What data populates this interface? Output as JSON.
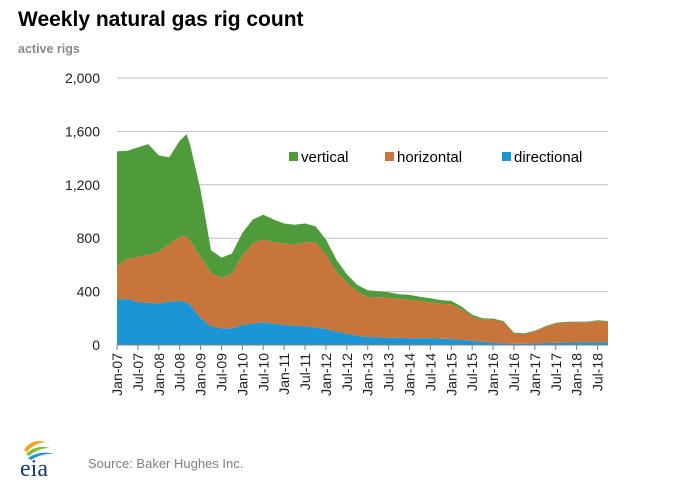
{
  "header": {
    "title": "Weekly natural gas rig count",
    "subtitle": "active rigs"
  },
  "footer": {
    "logo_text": "eia",
    "source": "Source: Baker Hughes Inc."
  },
  "colors": {
    "vertical": "#4f9a3a",
    "horizontal": "#c8753b",
    "directional": "#1b95d4",
    "gridline": "#bfbfbf",
    "axis_text": "#222222",
    "logo_text": "#1a3a6b",
    "logo_leaf_1": "#f6a21c",
    "logo_leaf_2": "#7bbf3a",
    "logo_leaf_3": "#1b95d4"
  },
  "chart_data": {
    "type": "area",
    "stacked": true,
    "title": "Weekly natural gas rig count",
    "ylabel": "active rigs",
    "xlabel": "",
    "ylim": [
      0,
      2000
    ],
    "yticks": [
      0,
      400,
      800,
      1200,
      1600,
      2000
    ],
    "ytick_labels": [
      "0",
      "400",
      "800",
      "1,200",
      "1,600",
      "2,000"
    ],
    "xlim": [
      "2007-01",
      "2018-10"
    ],
    "xticks": [
      "2007-01",
      "2007-07",
      "2008-01",
      "2008-07",
      "2009-01",
      "2009-07",
      "2010-01",
      "2010-07",
      "2011-01",
      "2011-07",
      "2012-01",
      "2012-07",
      "2013-01",
      "2013-07",
      "2014-01",
      "2014-07",
      "2015-01",
      "2015-07",
      "2016-01",
      "2016-07",
      "2017-01",
      "2017-07",
      "2018-01",
      "2018-07"
    ],
    "xtick_labels": [
      "Jan-07",
      "Jul-07",
      "Jan-08",
      "Jul-08",
      "Jan-09",
      "Jul-09",
      "Jan-10",
      "Jul-10",
      "Jan-11",
      "Jul-11",
      "Jan-12",
      "Jul-12",
      "Jan-13",
      "Jul-13",
      "Jan-14",
      "Jul-14",
      "Jan-15",
      "Jul-15",
      "Jan-16",
      "Jul-16",
      "Jan-17",
      "Jul-17",
      "Jan-18",
      "Jul-18"
    ],
    "grid": true,
    "legend_position": "top-right",
    "x": [
      "2007-01",
      "2007-04",
      "2007-07",
      "2007-10",
      "2008-01",
      "2008-04",
      "2008-07",
      "2008-09",
      "2008-10",
      "2009-01",
      "2009-04",
      "2009-07",
      "2009-10",
      "2010-01",
      "2010-04",
      "2010-07",
      "2010-10",
      "2011-01",
      "2011-04",
      "2011-07",
      "2011-10",
      "2012-01",
      "2012-04",
      "2012-07",
      "2012-10",
      "2013-01",
      "2013-04",
      "2013-07",
      "2013-10",
      "2014-01",
      "2014-04",
      "2014-07",
      "2014-10",
      "2015-01",
      "2015-04",
      "2015-07",
      "2015-10",
      "2016-01",
      "2016-04",
      "2016-07",
      "2016-10",
      "2017-01",
      "2017-04",
      "2017-07",
      "2017-10",
      "2018-01",
      "2018-04",
      "2018-07",
      "2018-10"
    ],
    "series": [
      {
        "name": "directional",
        "values": [
          340,
          345,
          320,
          315,
          310,
          325,
          330,
          320,
          300,
          200,
          140,
          125,
          125,
          150,
          160,
          170,
          160,
          150,
          145,
          140,
          130,
          120,
          100,
          85,
          70,
          60,
          58,
          55,
          55,
          50,
          50,
          50,
          48,
          45,
          38,
          32,
          25,
          18,
          12,
          8,
          8,
          12,
          15,
          17,
          18,
          20,
          20,
          20,
          20
        ]
      },
      {
        "name": "horizontal",
        "values": [
          250,
          300,
          340,
          360,
          390,
          430,
          480,
          500,
          480,
          460,
          400,
          380,
          410,
          520,
          600,
          620,
          610,
          610,
          610,
          630,
          640,
          560,
          450,
          380,
          330,
          300,
          300,
          300,
          290,
          290,
          280,
          270,
          260,
          260,
          230,
          180,
          165,
          170,
          160,
          80,
          75,
          90,
          120,
          145,
          150,
          150,
          150,
          160,
          155
        ]
      },
      {
        "name": "vertical",
        "values": [
          860,
          810,
          820,
          830,
          720,
          650,
          720,
          760,
          720,
          500,
          170,
          150,
          150,
          170,
          180,
          185,
          170,
          150,
          145,
          140,
          120,
          110,
          90,
          65,
          50,
          50,
          45,
          40,
          35,
          35,
          32,
          30,
          28,
          25,
          20,
          15,
          10,
          10,
          8,
          5,
          5,
          5,
          5,
          5,
          5,
          5,
          5,
          5,
          5
        ]
      }
    ]
  }
}
